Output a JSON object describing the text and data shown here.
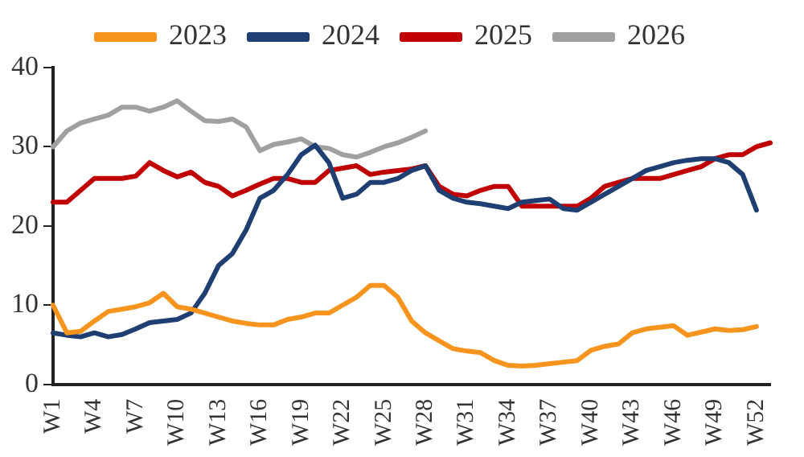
{
  "chart_data": {
    "type": "line",
    "legend": "top",
    "grid": false,
    "marker": "none",
    "line_style": "solid",
    "ylim": [
      0,
      40
    ],
    "yticks": [
      0,
      10,
      20,
      30,
      40
    ],
    "categories": [
      "W1",
      null,
      null,
      "W4",
      null,
      null,
      "W7",
      null,
      null,
      "W10",
      null,
      null,
      "W13",
      null,
      null,
      "W16",
      null,
      null,
      "W19",
      null,
      null,
      "W22",
      null,
      null,
      "W25",
      null,
      null,
      "W28",
      null,
      null,
      "W31",
      null,
      null,
      "W34",
      null,
      null,
      "W37",
      null,
      null,
      "W40",
      null,
      null,
      "W43",
      null,
      null,
      "W46",
      null,
      null,
      "W49",
      null,
      null,
      "W52",
      null
    ],
    "series": [
      {
        "name": "2023",
        "color": "#f7941d",
        "values": [
          10,
          6.5,
          6.7,
          8,
          9.2,
          9.5,
          9.8,
          10.3,
          11.5,
          9.8,
          9.5,
          9,
          8.5,
          8,
          7.7,
          7.5,
          7.5,
          8.2,
          8.5,
          9,
          9,
          10,
          11,
          12.5,
          12.5,
          11,
          8,
          6.5,
          5.5,
          4.5,
          4.2,
          4,
          3,
          2.4,
          2.3,
          2.4,
          2.6,
          2.8,
          3,
          4.3,
          4.8,
          5.1,
          6.5,
          7,
          7.2,
          7.4,
          6.2,
          6.6,
          7,
          6.8,
          6.9,
          7.3,
          null
        ]
      },
      {
        "name": "2024",
        "color": "#1f3f73",
        "values": [
          6.5,
          6.2,
          6,
          6.5,
          6,
          6.3,
          7,
          7.8,
          8,
          8.2,
          9,
          11.5,
          15,
          16.5,
          19.5,
          23.5,
          24.5,
          26.5,
          29,
          30.2,
          28,
          23.5,
          24,
          25.5,
          25.5,
          26,
          27,
          27.6,
          24.5,
          23.5,
          23,
          22.8,
          22.5,
          22.2,
          23,
          23.2,
          23.4,
          22.2,
          22,
          23,
          24,
          25,
          26,
          27,
          27.5,
          28,
          28.3,
          28.5,
          28.5,
          28,
          26.5,
          22,
          null
        ]
      },
      {
        "name": "2025",
        "color": "#c00000",
        "values": [
          23,
          23,
          24.5,
          26,
          26,
          26,
          26.3,
          28,
          27,
          26.2,
          26.8,
          25.5,
          25,
          23.8,
          24.5,
          25.3,
          26,
          26,
          25.5,
          25.5,
          27,
          27.3,
          27.6,
          26.5,
          26.8,
          27,
          27.2,
          27.6,
          25,
          24,
          23.8,
          24.5,
          25,
          25,
          22.5,
          22.5,
          22.5,
          22.5,
          22.5,
          23.5,
          25,
          25.5,
          26,
          26,
          26,
          26.5,
          27,
          27.5,
          28.5,
          29,
          29,
          30,
          30.5
        ]
      },
      {
        "name": "2026",
        "color": "#a0a0a0",
        "values": [
          30,
          32,
          33,
          33.5,
          34,
          35,
          35,
          34.5,
          35,
          35.8,
          34.5,
          33.3,
          33.2,
          33.5,
          32.5,
          29.5,
          30.3,
          30.6,
          31,
          30,
          29.8,
          29,
          28.7,
          29.3,
          30,
          30.5,
          31.2,
          32,
          null,
          null,
          null,
          null,
          null,
          null,
          null,
          null,
          null,
          null,
          null,
          null,
          null,
          null,
          null,
          null,
          null,
          null,
          null,
          null,
          null,
          null,
          null,
          null,
          null
        ]
      }
    ]
  }
}
